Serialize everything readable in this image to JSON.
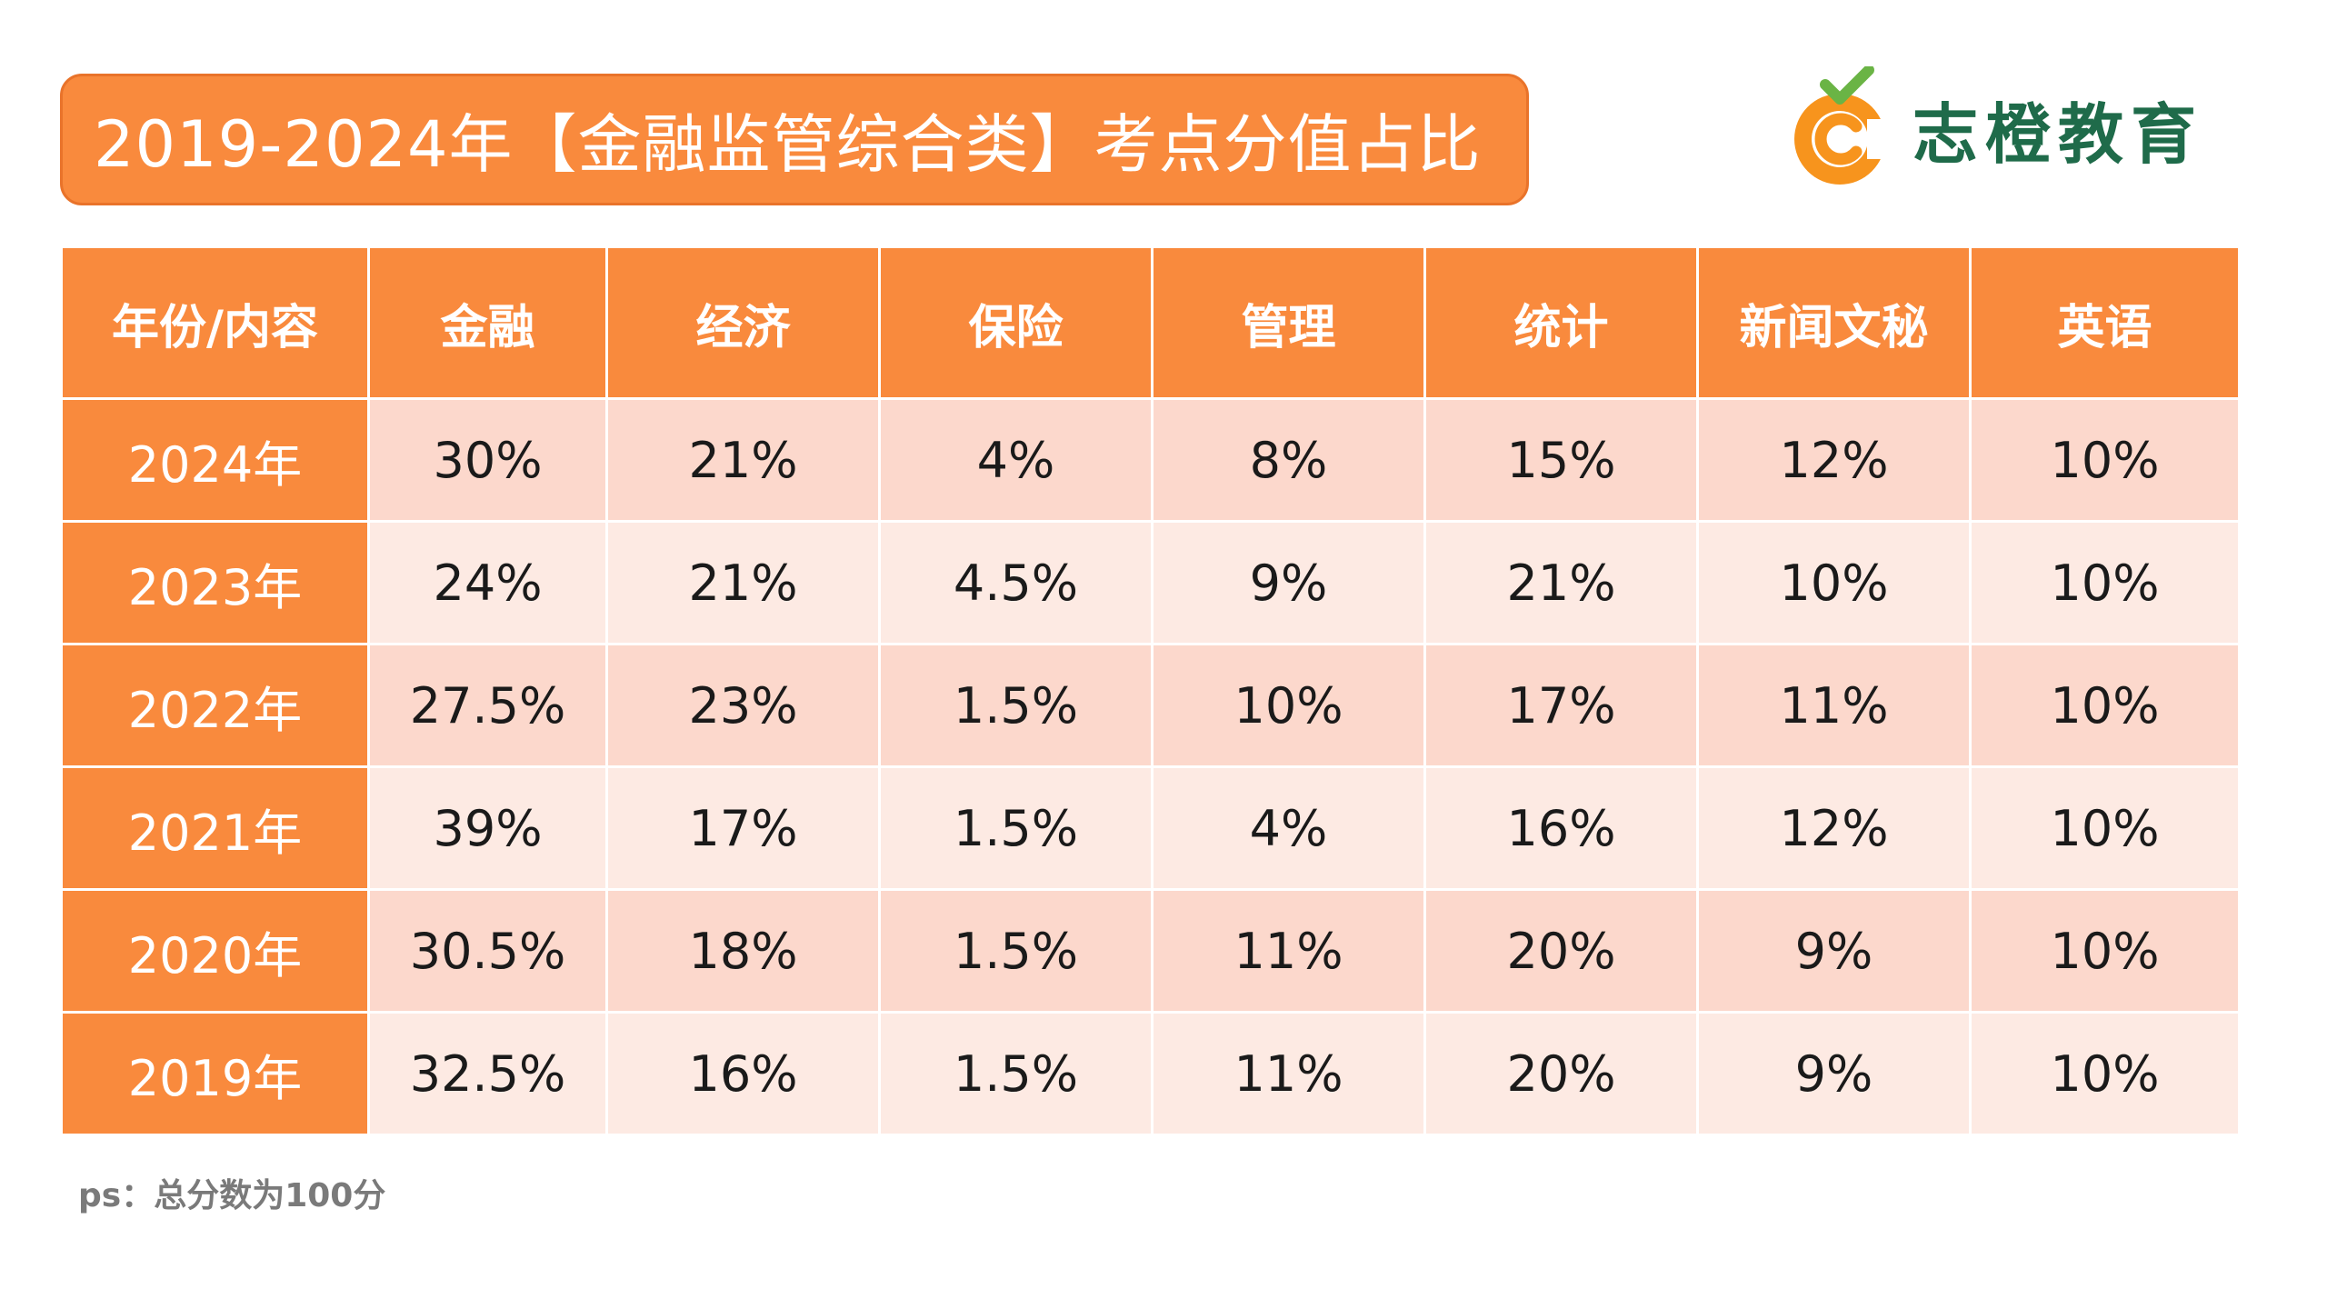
{
  "title": "2019-2024年【金融监管综合类】考点分值占比",
  "logo": {
    "text": "志橙教育",
    "icon": "orange-c-checkmark-logo"
  },
  "colors": {
    "header": "#f98a3d",
    "row_dark": "#fcd8cc",
    "row_light": "#fdeae3",
    "logo_green": "#1f6b4a",
    "logo_orange": "#f7941d"
  },
  "table": {
    "headers": [
      "年份/内容",
      "金融",
      "经济",
      "保险",
      "管理",
      "统计",
      "新闻文秘",
      "英语"
    ],
    "rows": [
      {
        "year": "2024年",
        "values": [
          "30%",
          "21%",
          "4%",
          "8%",
          "15%",
          "12%",
          "10%"
        ]
      },
      {
        "year": "2023年",
        "values": [
          "24%",
          "21%",
          "4.5%",
          "9%",
          "21%",
          "10%",
          "10%"
        ]
      },
      {
        "year": "2022年",
        "values": [
          "27.5%",
          "23%",
          "1.5%",
          "10%",
          "17%",
          "11%",
          "10%"
        ]
      },
      {
        "year": "2021年",
        "values": [
          "39%",
          "17%",
          "1.5%",
          "4%",
          "16%",
          "12%",
          "10%"
        ]
      },
      {
        "year": "2020年",
        "values": [
          "30.5%",
          "18%",
          "1.5%",
          "11%",
          "20%",
          "9%",
          "10%"
        ]
      },
      {
        "year": "2019年",
        "values": [
          "32.5%",
          "16%",
          "1.5%",
          "11%",
          "20%",
          "9%",
          "10%"
        ]
      }
    ]
  },
  "footnote": "ps：总分数为100分"
}
